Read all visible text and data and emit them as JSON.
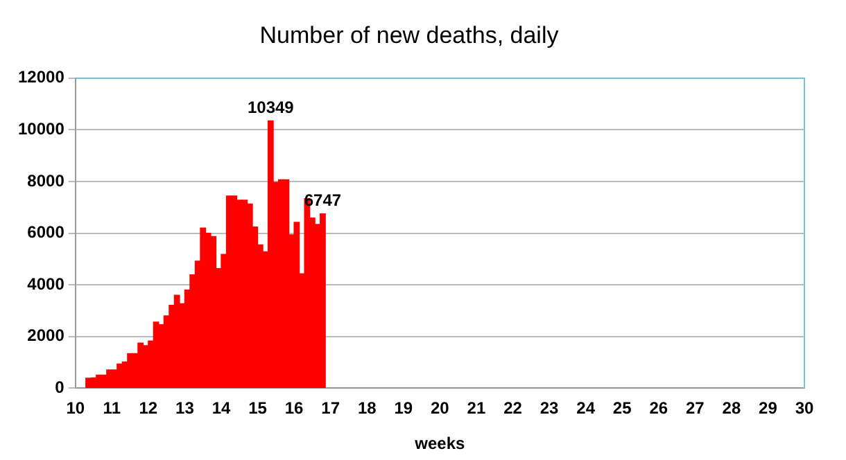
{
  "chart_data": {
    "type": "bar",
    "title": "Number of new deaths, daily",
    "xlabel": "weeks",
    "x": [
      10.357,
      10.5,
      10.643,
      10.786,
      10.929,
      11.071,
      11.214,
      11.357,
      11.5,
      11.643,
      11.786,
      11.929,
      12.071,
      12.214,
      12.357,
      12.5,
      12.643,
      12.786,
      12.929,
      13.071,
      13.214,
      13.357,
      13.5,
      13.643,
      13.786,
      13.929,
      14.071,
      14.214,
      14.357,
      14.5,
      14.643,
      14.786,
      14.929,
      15.071,
      15.214,
      15.357,
      15.5,
      15.643,
      15.786,
      15.929,
      16.071,
      16.214,
      16.357,
      16.5,
      16.643,
      16.786
    ],
    "values": [
      390,
      400,
      510,
      510,
      710,
      710,
      940,
      1020,
      1340,
      1340,
      1750,
      1650,
      1830,
      2560,
      2460,
      2800,
      3210,
      3600,
      3270,
      3800,
      4390,
      4920,
      6200,
      6000,
      5870,
      4630,
      5180,
      7440,
      7440,
      7280,
      7280,
      7130,
      6240,
      5550,
      5280,
      10349,
      7970,
      8070,
      8070,
      5940,
      6420,
      4430,
      7340,
      6590,
      6340,
      6747
    ],
    "value_labels": [
      null,
      null,
      null,
      null,
      null,
      null,
      null,
      null,
      null,
      null,
      null,
      null,
      null,
      null,
      null,
      null,
      null,
      null,
      null,
      null,
      null,
      null,
      null,
      null,
      null,
      null,
      null,
      null,
      null,
      null,
      null,
      null,
      null,
      null,
      null,
      "10349",
      null,
      null,
      null,
      null,
      null,
      null,
      null,
      null,
      null,
      "6747"
    ],
    "color": "#ff0000",
    "xlim": [
      10,
      30
    ],
    "xticks": [
      10,
      11,
      12,
      13,
      14,
      15,
      16,
      17,
      18,
      19,
      20,
      21,
      22,
      23,
      24,
      25,
      26,
      27,
      28,
      29,
      30
    ],
    "ylim": [
      0,
      12000
    ],
    "yticks": [
      0,
      2000,
      4000,
      6000,
      8000,
      10000,
      12000
    ],
    "grid": "y",
    "legend": false
  }
}
